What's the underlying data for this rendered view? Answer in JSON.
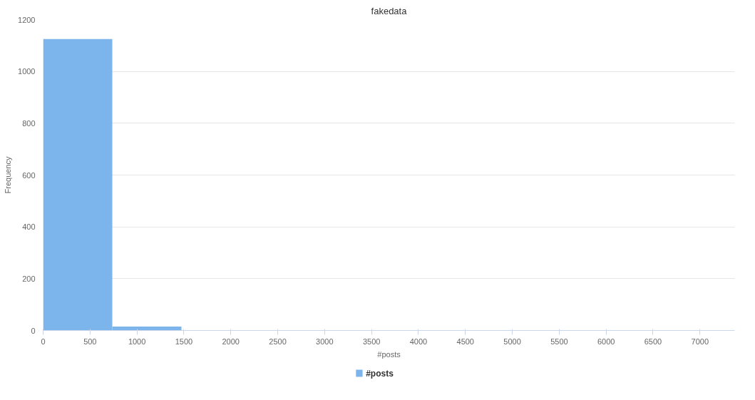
{
  "chart_data": {
    "type": "histogram",
    "title": "fakedata",
    "xlabel": "#posts",
    "ylabel": "Frequency",
    "bins": [
      0,
      737,
      1474,
      2211,
      2948,
      3685,
      4422,
      5159,
      5896,
      6633,
      7370
    ],
    "series": [
      {
        "name": "#posts",
        "color": "#7cb5ec",
        "values": [
          1125,
          15,
          0,
          0,
          0,
          0,
          0,
          0,
          0,
          0
        ]
      }
    ],
    "xlim": [
      0,
      7370
    ],
    "xticks": [
      0,
      500,
      1000,
      1500,
      2000,
      2500,
      3000,
      3500,
      4000,
      4500,
      5000,
      5500,
      6000,
      6500,
      7000
    ],
    "ylim": [
      0,
      1200
    ],
    "yticks": [
      0,
      200,
      400,
      600,
      800,
      1000,
      1200
    ],
    "grid": "y",
    "legend": "bottom"
  }
}
